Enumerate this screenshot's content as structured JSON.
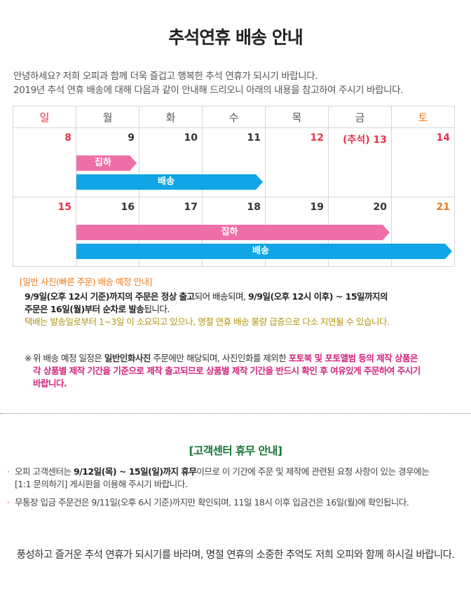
{
  "title": "추석연휴 배송 안내",
  "intro": [
    "안녕하세요? 저희 오피과 함께 더욱 즐겁고 행복한 추석 연휴가 되시기 바랍니다.",
    "2019년 추석 연휴 배송에 대해 다음과 같이 안내해 드리오니 아래의 내용을 참고하여 주시기 바랍니다."
  ],
  "calendar": {
    "weekdays": [
      "일",
      "월",
      "화",
      "수",
      "목",
      "금",
      "토"
    ],
    "week1": [
      "8",
      "9",
      "10",
      "11",
      "12",
      "(추석) 13",
      "14"
    ],
    "week2": [
      "15",
      "16",
      "17",
      "18",
      "19",
      "20",
      "21"
    ],
    "bar_pickup": "집하",
    "bar_delivery": "배송",
    "colors": {
      "sunday": "#e8334a",
      "saturday": "#f07a20",
      "pickup": "#ee6fa8",
      "delivery": "#10a6e6"
    }
  },
  "general": {
    "heading": "[일반 사진(빠른 주문) 배송 예정 안내]",
    "line1_a": "9/9일(오후 12시 기준)까지의 주문은 ",
    "line1_b": "정상 출고",
    "line1_c": "되어 배송되며, ",
    "line1_d": "9/9일(오후 12시 이후) ~ 15일까지의",
    "line2_a": "주문은 16일(월)부터 순차로 발송",
    "line2_b": "됩니다.",
    "warning": "택배는 발송일로부터 1~3일 이 소요되고 있으나, 명절 연휴 배송 물량 급증으로 다소 지연될 수 있습니다."
  },
  "note": {
    "mark": "※",
    "p1": "위 배송 예정 일정은 ",
    "p2": "일반인화사진",
    "p3": " 주문에만 해당되며, 사진인화를 제외한 ",
    "p4": "포토북 및 포토앨범 등의 제작 상품은",
    "p5": "각 상품별 제작 기간을 기준으로 제작 출고되므로 ",
    "p6": "상품별 제작 기간을 반드시 확인 후 여유있게 주문하여 주시기",
    "p7": "바랍니다."
  },
  "cs": {
    "title": "[고객센터 휴무 안내]",
    "bullet": "·",
    "item1_a": "오피 고객센터는 ",
    "item1_b": "9/12일(목) ~ 15일(일)까지 휴무",
    "item1_c": "이므로 이 기간에 주문 및 제작에 관련된 요청 사항이 있는 경우에는",
    "item1_d": "[1:1 문의하기] 게시판을 이용해 주시기 바랍니다.",
    "item2": "무통장 입금 주문건은 9/11일(오후 6시 기준)까지만 확인되며, 11일 18시 이후 입금건은 16일(월)에 확인됩니다."
  },
  "closing": "풍성하고 즐거운 추석 연휴가 되시기를 바라며, 명절 연휴의 소중한 추억도 저희 오피와 함께 하시길 바랍니다."
}
